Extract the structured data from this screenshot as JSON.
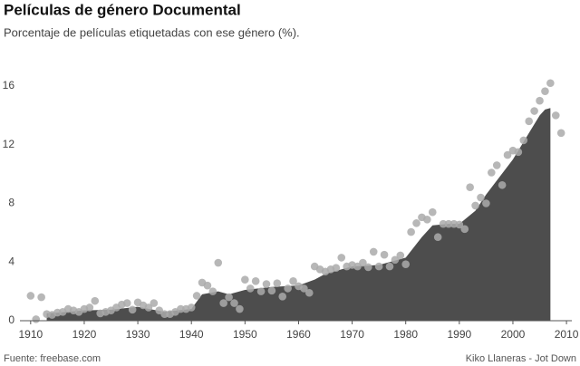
{
  "chart_data": {
    "type": "area",
    "title": "Películas de género Documental",
    "subtitle": "Porcentaje de películas etiquetadas con ese género (%).",
    "source": "Fuente: freebase.com",
    "credit": "Kiko Llaneras - Jot Down",
    "xlim": [
      1908,
      2011
    ],
    "xticks": [
      1910,
      1920,
      1930,
      1940,
      1950,
      1960,
      1970,
      1980,
      1990,
      2000,
      2010
    ],
    "ylim": [
      0,
      16
    ],
    "yticks": [
      0,
      4,
      8,
      12,
      16
    ],
    "grid": false,
    "series": [
      {
        "type": "area",
        "color": "#4d4d4d",
        "x": [
          1913,
          1915,
          1920,
          1925,
          1930,
          1935,
          1940,
          1942,
          1945,
          1947,
          1950,
          1955,
          1960,
          1963,
          1965,
          1970,
          1975,
          1980,
          1983,
          1985,
          1988,
          1990,
          1993,
          1995,
          2000,
          2003,
          2005,
          2006,
          2007
        ],
        "values": [
          0.5,
          0.55,
          0.7,
          0.75,
          0.95,
          0.6,
          0.8,
          1.8,
          2.0,
          1.8,
          2.1,
          2.3,
          2.4,
          2.8,
          3.2,
          3.7,
          3.8,
          4.3,
          5.7,
          6.5,
          6.6,
          6.6,
          7.5,
          8.6,
          11.0,
          12.8,
          14.0,
          14.4,
          14.5
        ]
      },
      {
        "type": "scatter",
        "color": "#aaaaaa",
        "x": [
          1910,
          1911,
          1912,
          1913,
          1914,
          1915,
          1916,
          1917,
          1918,
          1919,
          1920,
          1921,
          1922,
          1923,
          1924,
          1925,
          1926,
          1927,
          1928,
          1929,
          1930,
          1931,
          1932,
          1933,
          1934,
          1935,
          1936,
          1937,
          1938,
          1939,
          1940,
          1941,
          1942,
          1943,
          1944,
          1945,
          1946,
          1947,
          1948,
          1949,
          1950,
          1951,
          1952,
          1953,
          1954,
          1955,
          1956,
          1957,
          1958,
          1959,
          1960,
          1961,
          1962,
          1963,
          1964,
          1965,
          1966,
          1967,
          1968,
          1969,
          1970,
          1971,
          1972,
          1973,
          1974,
          1975,
          1976,
          1977,
          1978,
          1979,
          1980,
          1981,
          1982,
          1983,
          1984,
          1985,
          1986,
          1987,
          1988,
          1989,
          1990,
          1991,
          1992,
          1993,
          1994,
          1995,
          1996,
          1997,
          1998,
          1999,
          2000,
          2001,
          2002,
          2003,
          2004,
          2005,
          2006,
          2007,
          2008,
          2009
        ],
        "values": [
          1.7,
          0.1,
          1.6,
          0.45,
          0.4,
          0.55,
          0.6,
          0.8,
          0.7,
          0.6,
          0.8,
          0.9,
          1.35,
          0.5,
          0.6,
          0.7,
          0.9,
          1.1,
          1.2,
          0.75,
          1.25,
          1.05,
          0.9,
          1.2,
          0.7,
          0.45,
          0.45,
          0.6,
          0.8,
          0.8,
          0.9,
          1.7,
          2.6,
          2.4,
          2.0,
          3.95,
          1.2,
          1.6,
          1.2,
          0.8,
          2.8,
          2.2,
          2.7,
          2.0,
          2.5,
          2.05,
          2.55,
          1.65,
          2.2,
          2.7,
          2.35,
          2.2,
          1.9,
          3.7,
          3.5,
          3.35,
          3.5,
          3.6,
          4.3,
          3.7,
          3.8,
          3.7,
          3.95,
          3.65,
          4.7,
          3.7,
          4.5,
          3.7,
          4.15,
          4.45,
          3.85,
          6.05,
          6.65,
          7.05,
          6.9,
          7.4,
          5.7,
          6.6,
          6.6,
          6.6,
          6.55,
          6.25,
          9.1,
          7.85,
          8.4,
          8.0,
          10.1,
          10.6,
          9.25,
          11.3,
          11.6,
          11.5,
          12.3,
          13.6,
          14.3,
          15.0,
          15.65,
          16.2,
          14.0,
          12.8
        ]
      }
    ]
  }
}
